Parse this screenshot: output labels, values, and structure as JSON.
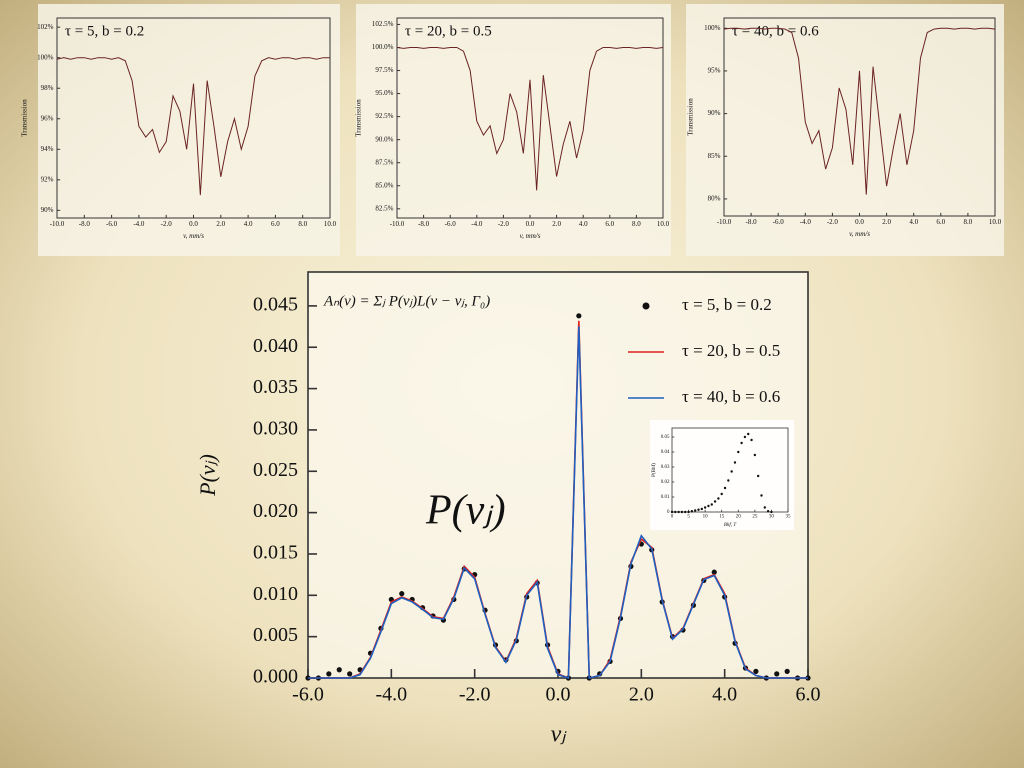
{
  "chart_data": [
    {
      "type": "line",
      "title": "τ = 5, b = 0.2",
      "x_label": "v, mm/s",
      "y_label": "Transmission",
      "color": "#6b2323",
      "x": [
        -10,
        -9.5,
        -9,
        -8.5,
        -8,
        -7.5,
        -7,
        -6.5,
        -6,
        -5.5,
        -5,
        -4.5,
        -4,
        -3.5,
        -3,
        -2.5,
        -2,
        -1.5,
        -1,
        -0.5,
        0,
        0.5,
        1,
        1.5,
        2,
        2.5,
        3,
        3.5,
        4,
        4.5,
        5,
        5.5,
        6,
        6.5,
        7,
        7.5,
        8,
        8.5,
        9,
        9.5,
        10
      ],
      "values": [
        99.9,
        100,
        99.9,
        100,
        100,
        99.9,
        100,
        100,
        99.9,
        100,
        99.8,
        98.5,
        95.5,
        94.8,
        95.3,
        93.8,
        94.5,
        97.5,
        96.5,
        94.0,
        98.3,
        91.0,
        98.5,
        95.5,
        92.2,
        94.5,
        96.0,
        94.0,
        95.5,
        98.8,
        99.8,
        100,
        99.9,
        100,
        100,
        99.9,
        100,
        100,
        99.9,
        100,
        100
      ],
      "xlim": [
        -10,
        10
      ],
      "ylim": [
        89.5,
        102.6
      ],
      "xticks": [
        {
          "value": -10,
          "label": "-10.0"
        },
        {
          "value": -8,
          "label": "-8.0"
        },
        {
          "value": -6,
          "label": "-6.0"
        },
        {
          "value": -4,
          "label": "-4.0"
        },
        {
          "value": -2,
          "label": "-2.0"
        },
        {
          "value": 0,
          "label": "0.0"
        },
        {
          "value": 2,
          "label": "2.0"
        },
        {
          "value": 4,
          "label": "4.0"
        },
        {
          "value": 6,
          "label": "6.0"
        },
        {
          "value": 8,
          "label": "8.0"
        },
        {
          "value": 10,
          "label": "10.0"
        }
      ],
      "yticks": [
        {
          "value": 90,
          "label": "90%"
        },
        {
          "value": 92,
          "label": "92%"
        },
        {
          "value": 94,
          "label": "94%"
        },
        {
          "value": 96,
          "label": "96%"
        },
        {
          "value": 98,
          "label": "98%"
        },
        {
          "value": 100,
          "label": "100%"
        },
        {
          "value": 102,
          "label": "102%"
        }
      ]
    },
    {
      "type": "line",
      "title": "τ = 20, b = 0.5",
      "x_label": "v, mm/s",
      "y_label": "Transmission",
      "color": "#6b2323",
      "x": [
        -10,
        -9.5,
        -9,
        -8.5,
        -8,
        -7.5,
        -7,
        -6.5,
        -6,
        -5.5,
        -5,
        -4.5,
        -4,
        -3.5,
        -3,
        -2.5,
        -2,
        -1.5,
        -1,
        -0.5,
        0,
        0.5,
        1,
        1.5,
        2,
        2.5,
        3,
        3.5,
        4,
        4.5,
        5,
        5.5,
        6,
        6.5,
        7,
        7.5,
        8,
        8.5,
        9,
        9.5,
        10
      ],
      "values": [
        100,
        99.9,
        100,
        100,
        99.9,
        100,
        100,
        99.9,
        100,
        100,
        99.6,
        97.5,
        92.0,
        90.5,
        91.5,
        88.5,
        90.0,
        95.0,
        93.0,
        88.5,
        96.5,
        84.5,
        97.0,
        91.5,
        86.0,
        89.5,
        92.0,
        88.0,
        91.0,
        97.5,
        99.6,
        100,
        100,
        99.9,
        100,
        100,
        99.9,
        100,
        100,
        99.9,
        100
      ],
      "xlim": [
        -10,
        10
      ],
      "ylim": [
        81.5,
        103.2
      ],
      "xticks": [
        {
          "value": -10,
          "label": "-10.0"
        },
        {
          "value": -8,
          "label": "-8.0"
        },
        {
          "value": -6,
          "label": "-6.0"
        },
        {
          "value": -4,
          "label": "-4.0"
        },
        {
          "value": -2,
          "label": "-2.0"
        },
        {
          "value": 0,
          "label": "0.0"
        },
        {
          "value": 2,
          "label": "2.0"
        },
        {
          "value": 4,
          "label": "4.0"
        },
        {
          "value": 6,
          "label": "6.0"
        },
        {
          "value": 8,
          "label": "8.0"
        },
        {
          "value": 10,
          "label": "10.0"
        }
      ],
      "yticks": [
        {
          "value": 82.5,
          "label": "82.5%"
        },
        {
          "value": 85,
          "label": "85.0%"
        },
        {
          "value": 87.5,
          "label": "87.5%"
        },
        {
          "value": 90,
          "label": "90.0%"
        },
        {
          "value": 92.5,
          "label": "92.5%"
        },
        {
          "value": 95,
          "label": "95.0%"
        },
        {
          "value": 97.5,
          "label": "97.5%"
        },
        {
          "value": 100,
          "label": "100.0%"
        },
        {
          "value": 102.5,
          "label": "102.5%"
        }
      ]
    },
    {
      "type": "line",
      "title": "τ = 40, b = 0.6",
      "x_label": "v, mm/s",
      "y_label": "Transmission",
      "color": "#6b2323",
      "x": [
        -10,
        -9.5,
        -9,
        -8.5,
        -8,
        -7.5,
        -7,
        -6.5,
        -6,
        -5.5,
        -5,
        -4.5,
        -4,
        -3.5,
        -3,
        -2.5,
        -2,
        -1.5,
        -1,
        -0.5,
        0,
        0.5,
        1,
        1.5,
        2,
        2.5,
        3,
        3.5,
        4,
        4.5,
        5,
        5.5,
        6,
        6.5,
        7,
        7.5,
        8,
        8.5,
        9,
        9.5,
        10
      ],
      "values": [
        99.9,
        100,
        100,
        99.9,
        100,
        100,
        99.9,
        100,
        100,
        99.9,
        99.5,
        96.5,
        89.0,
        86.5,
        88.0,
        83.5,
        86.0,
        93.0,
        90.5,
        84.0,
        95.0,
        80.5,
        95.5,
        88.5,
        81.5,
        86.0,
        90.0,
        84.0,
        88.0,
        96.5,
        99.5,
        99.9,
        100,
        100,
        99.9,
        100,
        100,
        99.9,
        100,
        100,
        99.9
      ],
      "xlim": [
        -10,
        10
      ],
      "ylim": [
        78,
        101.2
      ],
      "xticks": [
        {
          "value": -10,
          "label": "-10.0"
        },
        {
          "value": -8,
          "label": "-8.0"
        },
        {
          "value": -6,
          "label": "-6.0"
        },
        {
          "value": -4,
          "label": "-4.0"
        },
        {
          "value": -2,
          "label": "-2.0"
        },
        {
          "value": 0,
          "label": "0.0"
        },
        {
          "value": 2,
          "label": "2.0"
        },
        {
          "value": 4,
          "label": "4.0"
        },
        {
          "value": 6,
          "label": "6.0"
        },
        {
          "value": 8,
          "label": "8.0"
        },
        {
          "value": 10,
          "label": "10.0"
        }
      ],
      "yticks": [
        {
          "value": 80,
          "label": "80%"
        },
        {
          "value": 85,
          "label": "85%"
        },
        {
          "value": 90,
          "label": "90%"
        },
        {
          "value": 95,
          "label": "95%"
        },
        {
          "value": 100,
          "label": "100%"
        }
      ]
    },
    {
      "type": "line",
      "x_label": "vⱼ",
      "y_label": "P(vⱼ)",
      "annotations": [
        "Aₙ(v) = Σⱼ P(vⱼ)L(v − vⱼ, Γ₀)",
        "P(vⱼ)"
      ],
      "legend": "top-right",
      "x": [
        -6,
        -5.75,
        -5.5,
        -5.25,
        -5,
        -4.75,
        -4.5,
        -4.25,
        -4,
        -3.75,
        -3.5,
        -3.25,
        -3,
        -2.75,
        -2.5,
        -2.25,
        -2,
        -1.75,
        -1.5,
        -1.25,
        -1,
        -0.75,
        -0.5,
        -0.25,
        0,
        0.25,
        0.5,
        0.75,
        1,
        1.25,
        1.5,
        1.75,
        2,
        2.25,
        2.5,
        2.75,
        3,
        3.25,
        3.5,
        3.75,
        4,
        4.25,
        4.5,
        4.75,
        5,
        5.25,
        5.5,
        5.75,
        6
      ],
      "series": [
        {
          "name": "τ = 5, b = 0.2",
          "color": "#111111",
          "mode": "markers",
          "values": [
            0,
            0,
            0.0005,
            0.001,
            0.0005,
            0.001,
            0.003,
            0.006,
            0.0095,
            0.0102,
            0.0095,
            0.0085,
            0.0075,
            0.007,
            0.0095,
            0.0132,
            0.0125,
            0.0082,
            0.004,
            0.0022,
            0.0045,
            0.0098,
            0.0115,
            0.004,
            0.0008,
            0,
            0.0438,
            0,
            0.0005,
            0.002,
            0.0072,
            0.0135,
            0.0162,
            0.0155,
            0.0092,
            0.005,
            0.0058,
            0.0088,
            0.0118,
            0.0128,
            0.0098,
            0.0042,
            0.0012,
            0.0008,
            0,
            0.0005,
            0.0008,
            0,
            0
          ]
        },
        {
          "name": "τ = 20, b = 0.5",
          "color": "#e0201b",
          "mode": "line",
          "values": [
            0,
            0,
            0,
            0,
            0,
            0.0005,
            0.0025,
            0.0058,
            0.0092,
            0.0098,
            0.0093,
            0.0084,
            0.0074,
            0.0072,
            0.0098,
            0.0135,
            0.0122,
            0.0078,
            0.0038,
            0.002,
            0.0048,
            0.0102,
            0.0118,
            0.0038,
            0.0005,
            0,
            0.0432,
            0,
            0.0003,
            0.0022,
            0.0075,
            0.014,
            0.0168,
            0.0158,
            0.0095,
            0.0048,
            0.006,
            0.009,
            0.012,
            0.0125,
            0.0102,
            0.0045,
            0.0012,
            0.0003,
            0,
            0,
            0,
            0,
            0
          ]
        },
        {
          "name": "τ = 40, b = 0.6",
          "color": "#1f5fbf",
          "mode": "line",
          "values": [
            0,
            0,
            0,
            0,
            0,
            0.0004,
            0.0024,
            0.0056,
            0.009,
            0.0097,
            0.0092,
            0.0083,
            0.0073,
            0.0071,
            0.0096,
            0.0133,
            0.012,
            0.0077,
            0.0037,
            0.0019,
            0.0046,
            0.01,
            0.0116,
            0.0036,
            0.0004,
            0,
            0.0425,
            0,
            0.0003,
            0.002,
            0.0073,
            0.0138,
            0.0172,
            0.0156,
            0.0094,
            0.0047,
            0.0059,
            0.0089,
            0.0119,
            0.0124,
            0.01,
            0.0044,
            0.0011,
            0.0003,
            0,
            0,
            0,
            0,
            0
          ]
        }
      ],
      "xlim": [
        -6,
        6
      ],
      "ylim": [
        0,
        0.0491
      ],
      "xticks": [
        {
          "value": -6,
          "label": "-6.0"
        },
        {
          "value": -4,
          "label": "-4.0"
        },
        {
          "value": -2,
          "label": "-2.0"
        },
        {
          "value": 0,
          "label": "0.0"
        },
        {
          "value": 2,
          "label": "2.0"
        },
        {
          "value": 4,
          "label": "4.0"
        },
        {
          "value": 6,
          "label": "6.0"
        }
      ],
      "yticks": [
        {
          "value": 0,
          "label": "0.000"
        },
        0.005,
        {
          "value": 0.01,
          "label": "0.010"
        },
        0.015,
        {
          "value": 0.02,
          "label": "0.020"
        },
        0.025,
        {
          "value": 0.03,
          "label": "0.030"
        },
        0.035,
        {
          "value": 0.04,
          "label": "0.040"
        },
        0.045
      ]
    },
    {
      "type": "scatter",
      "x_label": "Bhf, T",
      "y_label": "P(Bhf)",
      "color": "#111111",
      "x": [
        0,
        1,
        2,
        3,
        4,
        5,
        6,
        7,
        8,
        9,
        10,
        11,
        12,
        13,
        14,
        15,
        16,
        17,
        18,
        19,
        20,
        21,
        22,
        23,
        24,
        25,
        26,
        27,
        28,
        29,
        30
      ],
      "values": [
        0,
        0,
        0,
        0,
        0,
        0,
        0.0005,
        0.001,
        0.0015,
        0.002,
        0.003,
        0.004,
        0.005,
        0.007,
        0.009,
        0.012,
        0.016,
        0.021,
        0.027,
        0.033,
        0.04,
        0.046,
        0.05,
        0.052,
        0.048,
        0.038,
        0.024,
        0.011,
        0.003,
        0.0005,
        0
      ],
      "xlim": [
        0,
        35
      ],
      "ylim": [
        0,
        0.056
      ],
      "xticks": [
        0,
        5,
        10,
        15,
        20,
        25,
        30,
        35
      ],
      "yticks": [
        0,
        0.01,
        0.02,
        0.03,
        0.04,
        0.05
      ]
    }
  ]
}
